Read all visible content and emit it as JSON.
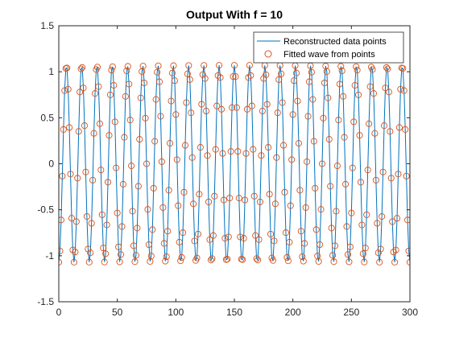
{
  "chart_data": {
    "type": "line",
    "title": "Output With f = 10",
    "xlabel": "",
    "ylabel": "",
    "xlim": [
      0,
      300
    ],
    "ylim": [
      -1.5,
      1.5
    ],
    "xticks": [
      0,
      50,
      100,
      150,
      200,
      250,
      300
    ],
    "yticks": [
      -1.5,
      -1,
      -0.5,
      0,
      0.5,
      1,
      1.5
    ],
    "xtick_labels": [
      "0",
      "50",
      "100",
      "150",
      "200",
      "250",
      "300"
    ],
    "ytick_labels": [
      "-1.5",
      "-1",
      "-0.5",
      "0",
      "0.5",
      "1",
      "1.5"
    ],
    "grid": false,
    "legend_position": "top-right",
    "signal": {
      "amplitude": 1.07,
      "cycles": 23,
      "samples": 301,
      "x_start": 0,
      "x_end": 300
    },
    "series": [
      {
        "name": "Reconstructed data points",
        "style": "line",
        "color": "#0072BD"
      },
      {
        "name": "Fitted wave from points",
        "style": "circle-markers",
        "color": "#D95319"
      }
    ]
  }
}
